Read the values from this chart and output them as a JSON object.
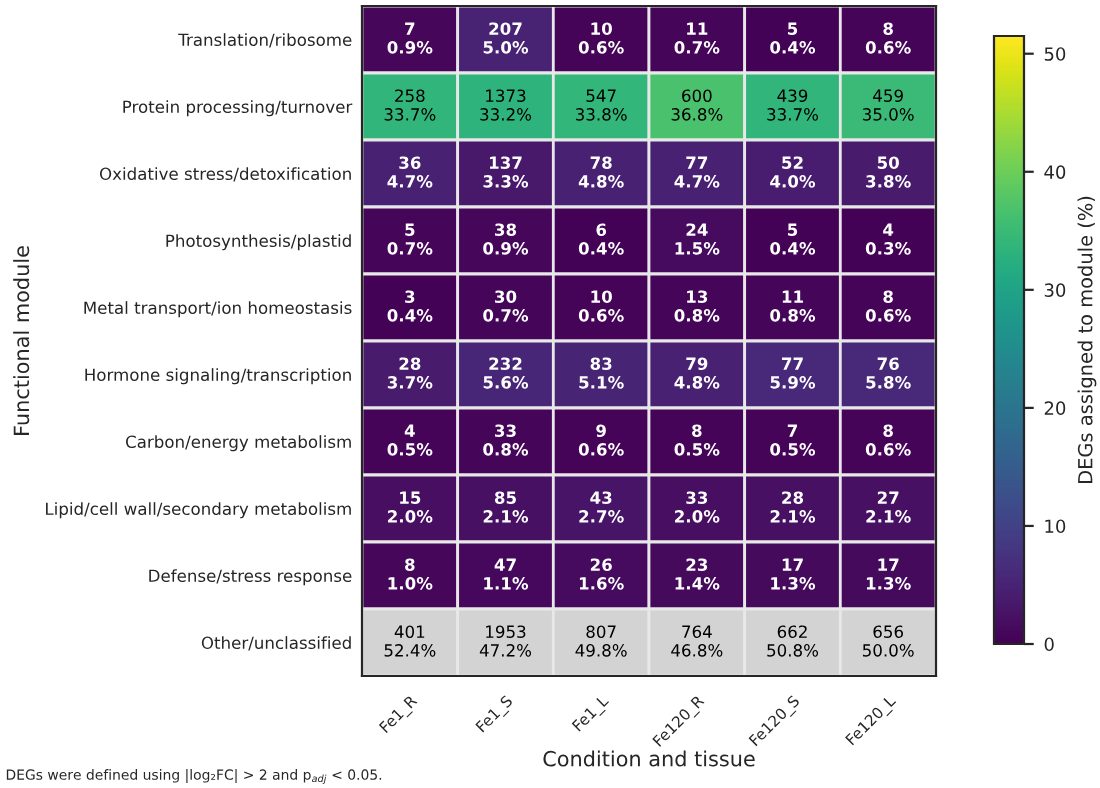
{
  "chart_data": {
    "type": "heatmap",
    "xlabel": "Condition and tissue",
    "ylabel": "Functional module",
    "clabel": "DEGs assigned to module (%)",
    "categories": [
      "Fe1_R",
      "Fe1_S",
      "Fe1_L",
      "Fe120_R",
      "Fe120_S",
      "Fe120_L"
    ],
    "y_categories": [
      "Translation/ribosome",
      "Protein processing/turnover",
      "Oxidative stress/detoxification",
      "Photosynthesis/plastid",
      "Metal transport/ion homeostasis",
      "Hormone signaling/transcription",
      "Carbon/energy metabolism",
      "Lipid/cell wall/secondary metabolism",
      "Defense/stress response",
      "Other/unclassified"
    ],
    "cells": [
      [
        0.9,
        5.0,
        0.6,
        0.7,
        0.4,
        0.6
      ],
      [
        33.7,
        33.2,
        33.8,
        36.8,
        33.7,
        35.0
      ],
      [
        4.7,
        3.3,
        4.8,
        4.7,
        4.0,
        3.8
      ],
      [
        0.7,
        0.9,
        0.4,
        1.5,
        0.4,
        0.3
      ],
      [
        0.4,
        0.7,
        0.6,
        0.8,
        0.8,
        0.6
      ],
      [
        3.7,
        5.6,
        5.1,
        4.8,
        5.9,
        5.8
      ],
      [
        0.5,
        0.8,
        0.6,
        0.5,
        0.5,
        0.6
      ],
      [
        2.0,
        2.1,
        2.7,
        2.0,
        2.1,
        2.1
      ],
      [
        1.0,
        1.1,
        1.6,
        1.4,
        1.3,
        1.3
      ],
      [
        null,
        null,
        null,
        null,
        null,
        null
      ]
    ],
    "cell_labels": [
      [
        "7\n0.9%",
        "207\n5.0%",
        "10\n0.6%",
        "11\n0.7%",
        "5\n0.4%",
        "8\n0.6%"
      ],
      [
        "258\n33.7%",
        "1373\n33.2%",
        "547\n33.8%",
        "600\n36.8%",
        "439\n33.7%",
        "459\n35.0%"
      ],
      [
        "36\n4.7%",
        "137\n3.3%",
        "78\n4.8%",
        "77\n4.7%",
        "52\n4.0%",
        "50\n3.8%"
      ],
      [
        "5\n0.7%",
        "38\n0.9%",
        "6\n0.4%",
        "24\n1.5%",
        "5\n0.4%",
        "4\n0.3%"
      ],
      [
        "3\n0.4%",
        "30\n0.7%",
        "10\n0.6%",
        "13\n0.8%",
        "11\n0.8%",
        "8\n0.6%"
      ],
      [
        "28\n3.7%",
        "232\n5.6%",
        "83\n5.1%",
        "79\n4.8%",
        "77\n5.9%",
        "76\n5.8%"
      ],
      [
        "4\n0.5%",
        "33\n0.8%",
        "9\n0.6%",
        "8\n0.5%",
        "7\n0.5%",
        "8\n0.6%"
      ],
      [
        "15\n2.0%",
        "85\n2.1%",
        "43\n2.7%",
        "33\n2.0%",
        "28\n2.1%",
        "27\n2.1%"
      ],
      [
        "8\n1.0%",
        "47\n1.1%",
        "26\n1.6%",
        "23\n1.4%",
        "17\n1.3%",
        "17\n1.3%"
      ],
      [
        "401\n52.4%",
        "1953\n47.2%",
        "807\n49.8%",
        "764\n46.8%",
        "662\n50.8%",
        "656\n50.0%"
      ]
    ],
    "clim": [
      0,
      51.5
    ],
    "cticks": [
      0,
      10,
      20,
      30,
      40,
      50
    ],
    "annotations": [
      "DEGs were defined using |log₂FC| > 2 and p$_{adj}$ < 0.05."
    ]
  }
}
